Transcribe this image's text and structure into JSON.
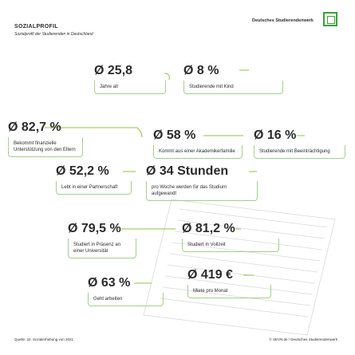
{
  "header": {
    "title": "SOZIALPROFIL",
    "subtitle": "Sozialprofil der Studierenden in Deutschland",
    "logo": "Deutsches Studierendenwerk"
  },
  "cards": [
    {
      "value": "Ø 25,8",
      "text": "Jahre alt"
    },
    {
      "value": "Ø 8 %",
      "text": "Studierende mit Kind"
    },
    {
      "value": "Ø 82,7 %",
      "text": "Bekommt finanzielle Unterstützung von den Eltern"
    },
    {
      "value": "Ø 58 %",
      "text": "Kommt aus einer Akademikerfamilie"
    },
    {
      "value": "Ø 16 %",
      "text": "Studierende mit Beeinträchtigung"
    },
    {
      "value": "Ø 52,2 %",
      "text": "Lebt in einer Partnerschaft"
    },
    {
      "value": "Ø 34 Stunden",
      "text": "pro Woche werden für das Studium aufgewandt"
    },
    {
      "value": "Ø 79,5 %",
      "text": "Studiert in Präsenz an einer Universität"
    },
    {
      "value": "Ø 81,2 %",
      "text": "Studiert in Vollzeit"
    },
    {
      "value": "Ø 63 %",
      "text": "Geht arbeiten"
    },
    {
      "value": "Ø 419 €",
      "text": "Miete pro Monat"
    }
  ],
  "footer": {
    "source": "Quelle: 22. Sozialerhebung von 2021",
    "copyright": "© SEVN.de / Deutsches Studierendenwerk"
  }
}
